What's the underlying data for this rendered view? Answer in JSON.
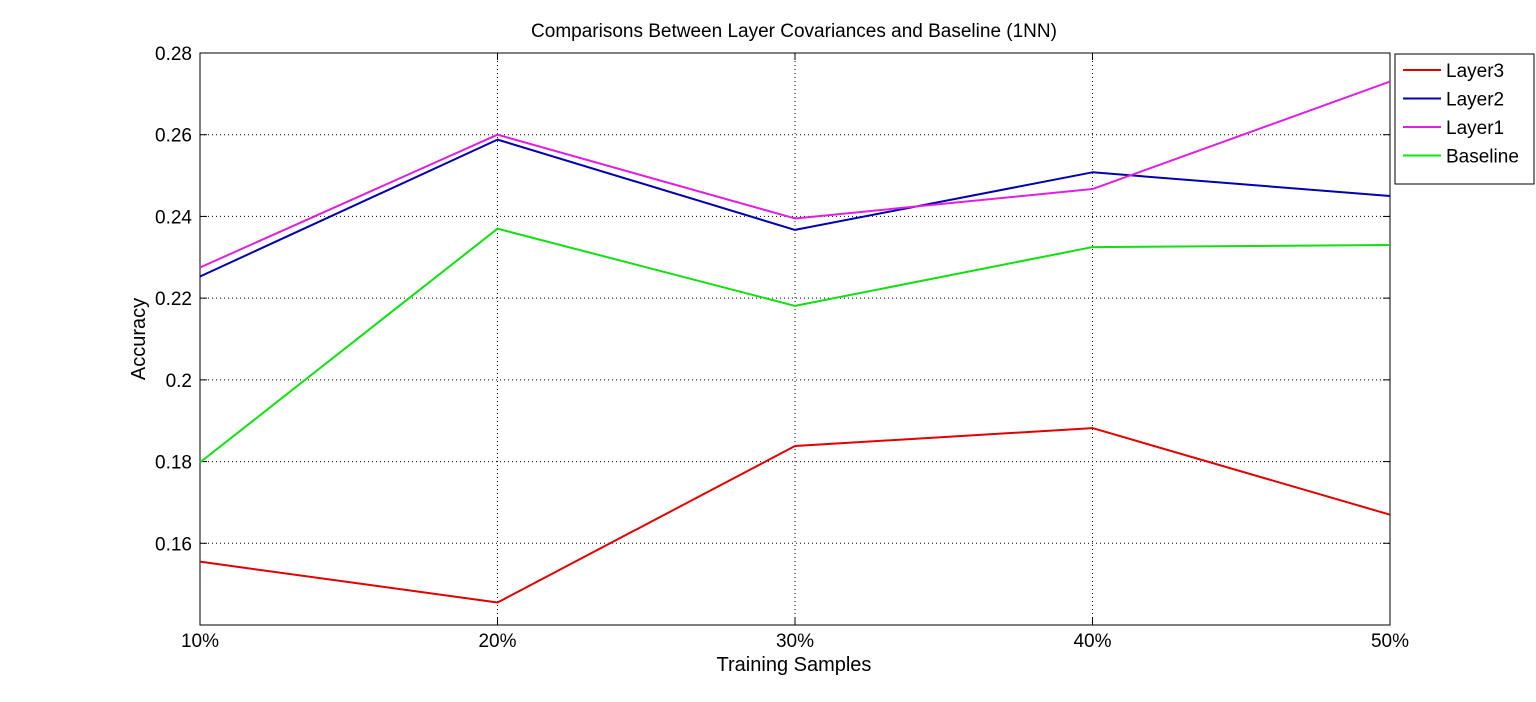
{
  "chart_data": {
    "type": "line",
    "title": "Comparisons Between Layer Covariances and Baseline (1NN)",
    "xlabel": "Training Samples",
    "ylabel": "Accuracy",
    "categories": [
      "10%",
      "20%",
      "30%",
      "40%",
      "50%"
    ],
    "ylim": [
      0.14,
      0.28
    ],
    "yticks": [
      0.16,
      0.18,
      0.2,
      0.22,
      0.24,
      0.26,
      0.28
    ],
    "ytick_labels": [
      "0.16",
      "0.18",
      "0.2",
      "0.22",
      "0.24",
      "0.26",
      "0.28"
    ],
    "grid": true,
    "legend_position": "top-right",
    "series": [
      {
        "name": "Layer3",
        "color": "#e00000",
        "values": [
          0.1555,
          0.1455,
          0.1838,
          0.1882,
          0.167
        ]
      },
      {
        "name": "Layer2",
        "color": "#0000b0",
        "values": [
          0.2253,
          0.2588,
          0.2367,
          0.2508,
          0.245
        ]
      },
      {
        "name": "Layer1",
        "color": "#e020e0",
        "values": [
          0.2275,
          0.26,
          0.2395,
          0.2467,
          0.273
        ]
      },
      {
        "name": "Baseline",
        "color": "#10e010",
        "values": [
          0.1798,
          0.237,
          0.2181,
          0.2325,
          0.233
        ]
      }
    ]
  }
}
